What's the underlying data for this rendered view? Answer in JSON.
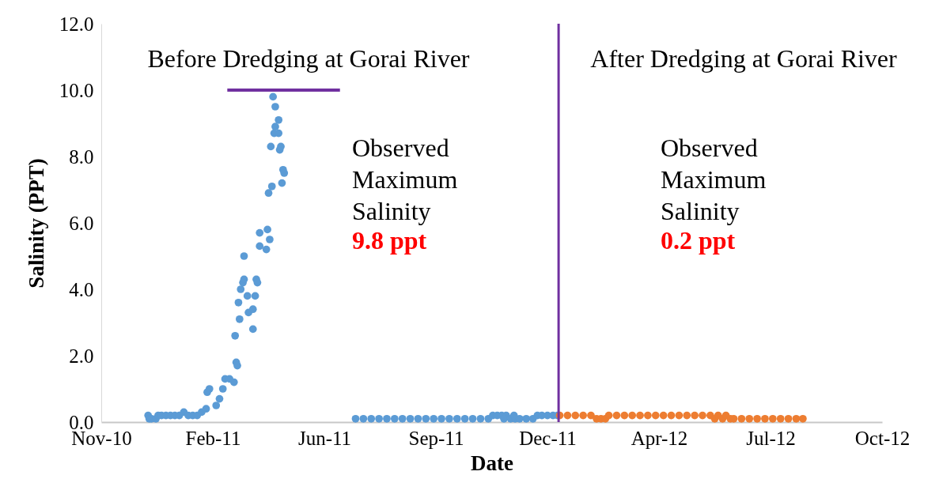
{
  "chart_data": {
    "type": "scatter",
    "xlabel": "Date",
    "ylabel": "Salinity (PPT)",
    "marker": "circle",
    "xlim": [
      "2010-11-19",
      "2012-10-19"
    ],
    "xticks": [
      {
        "value": "2010-11-19",
        "label": "Nov-10"
      },
      {
        "value": "2011-02-27",
        "label": "Feb-11"
      },
      {
        "value": "2011-06-07",
        "label": "Jun-11"
      },
      {
        "value": "2011-09-15",
        "label": "Sep-11"
      },
      {
        "value": "2011-12-24",
        "label": "Dec-11"
      },
      {
        "value": "2012-04-02",
        "label": "Apr-12"
      },
      {
        "value": "2012-07-11",
        "label": "Jul-12"
      },
      {
        "value": "2012-10-19",
        "label": "Oct-12"
      }
    ],
    "ylim": [
      0,
      12
    ],
    "yticks": [
      {
        "value": 0,
        "label": "0.0"
      },
      {
        "value": 2,
        "label": "2.0"
      },
      {
        "value": 4,
        "label": "4.0"
      },
      {
        "value": 6,
        "label": "6.0"
      },
      {
        "value": 8,
        "label": "8.0"
      },
      {
        "value": 10,
        "label": "10.0"
      },
      {
        "value": 12,
        "label": "12.0"
      }
    ],
    "series": [
      {
        "color": "#5b9bd5",
        "x": [
          "2010-12-31",
          "2011-01-01",
          "2011-01-03",
          "2011-01-07",
          "2011-01-09",
          "2011-01-12",
          "2011-01-16",
          "2011-01-20",
          "2011-01-24",
          "2011-01-28",
          "2011-02-01",
          "2011-02-05",
          "2011-02-09",
          "2011-02-13",
          "2011-02-17",
          "2011-02-21",
          "2011-02-22",
          "2011-02-24",
          "2011-03-02",
          "2011-03-05",
          "2011-03-08",
          "2011-03-10",
          "2011-03-14",
          "2011-03-18",
          "2011-03-19",
          "2011-03-20",
          "2011-03-21",
          "2011-03-22",
          "2011-03-23",
          "2011-03-24",
          "2011-03-26",
          "2011-03-27",
          "2011-03-27",
          "2011-03-30",
          "2011-03-31",
          "2011-04-04",
          "2011-04-04",
          "2011-04-06",
          "2011-04-07",
          "2011-04-08",
          "2011-04-10",
          "2011-04-10",
          "2011-04-16",
          "2011-04-17",
          "2011-04-18",
          "2011-04-19",
          "2011-04-20",
          "2011-04-21",
          "2011-04-22",
          "2011-04-23",
          "2011-04-24",
          "2011-04-24",
          "2011-04-27",
          "2011-04-27",
          "2011-04-28",
          "2011-04-29",
          "2011-04-30",
          "2011-05-01",
          "2011-05-02",
          "2011-07-05",
          "2011-07-12",
          "2011-07-19",
          "2011-07-26",
          "2011-08-02",
          "2011-08-09",
          "2011-08-16",
          "2011-08-23",
          "2011-08-30",
          "2011-09-06",
          "2011-09-13",
          "2011-09-20",
          "2011-09-27",
          "2011-10-04",
          "2011-10-11",
          "2011-10-18",
          "2011-10-25",
          "2011-11-01",
          "2011-11-05",
          "2011-11-09",
          "2011-11-13",
          "2011-11-17",
          "2011-11-15",
          "2011-11-21",
          "2011-11-25",
          "2011-11-24",
          "2011-11-29",
          "2011-12-05",
          "2011-12-11",
          "2011-12-15",
          "2011-12-19",
          "2011-12-24",
          "2011-12-29",
          "2012-01-02"
        ],
        "values": [
          0.2,
          0.1,
          0.1,
          0.1,
          0.2,
          0.2,
          0.2,
          0.2,
          0.2,
          0.2,
          0.3,
          0.2,
          0.2,
          0.2,
          0.3,
          0.4,
          0.9,
          1.0,
          0.5,
          0.7,
          1.0,
          1.3,
          1.3,
          1.2,
          2.6,
          1.8,
          1.7,
          3.6,
          3.1,
          4.0,
          4.2,
          4.3,
          5.0,
          3.8,
          3.3,
          3.4,
          2.8,
          3.8,
          4.3,
          4.2,
          5.7,
          5.3,
          5.2,
          5.8,
          6.9,
          5.5,
          8.3,
          7.1,
          9.8,
          8.7,
          9.5,
          8.9,
          9.1,
          8.7,
          8.2,
          8.3,
          7.2,
          7.6,
          7.5,
          0.1,
          0.1,
          0.1,
          0.1,
          0.1,
          0.1,
          0.1,
          0.1,
          0.1,
          0.1,
          0.1,
          0.1,
          0.1,
          0.1,
          0.1,
          0.1,
          0.1,
          0.1,
          0.2,
          0.2,
          0.2,
          0.2,
          0.1,
          0.1,
          0.1,
          0.2,
          0.1,
          0.1,
          0.1,
          0.2,
          0.2,
          0.2,
          0.2,
          0.2
        ]
      },
      {
        "color": "#ed7d31",
        "x": [
          "2012-01-04",
          "2012-01-11",
          "2012-01-18",
          "2012-01-25",
          "2012-02-01",
          "2012-02-06",
          "2012-02-10",
          "2012-02-14",
          "2012-02-17",
          "2012-02-24",
          "2012-03-02",
          "2012-03-09",
          "2012-03-16",
          "2012-03-23",
          "2012-03-30",
          "2012-04-06",
          "2012-04-13",
          "2012-04-20",
          "2012-04-27",
          "2012-05-04",
          "2012-05-11",
          "2012-05-18",
          "2012-05-22",
          "2012-05-25",
          "2012-05-29",
          "2012-06-01",
          "2012-06-05",
          "2012-06-08",
          "2012-06-15",
          "2012-06-22",
          "2012-06-29",
          "2012-07-06",
          "2012-07-13",
          "2012-07-20",
          "2012-07-27",
          "2012-08-03",
          "2012-08-09"
        ],
        "values": [
          0.2,
          0.2,
          0.2,
          0.2,
          0.2,
          0.1,
          0.1,
          0.1,
          0.2,
          0.2,
          0.2,
          0.2,
          0.2,
          0.2,
          0.2,
          0.2,
          0.2,
          0.2,
          0.2,
          0.2,
          0.2,
          0.2,
          0.1,
          0.2,
          0.1,
          0.2,
          0.1,
          0.1,
          0.1,
          0.1,
          0.1,
          0.1,
          0.1,
          0.1,
          0.1,
          0.1,
          0.1
        ]
      },
      {
        "type": "line",
        "marker": "none",
        "color": "#7030a0",
        "x": [
          "2011-03-12",
          "2011-06-21"
        ],
        "values": [
          10,
          10
        ]
      }
    ],
    "ref_lines": [
      {
        "axis": "x",
        "value": "2012-01-03",
        "color": "#7030a0"
      }
    ],
    "annotations": [
      "Before Dredging at Gorai River",
      "After Dredging at Gorai River",
      "Observed Maximum Salinity",
      "9.8 ppt",
      "Observed Maximum Salinity",
      "0.2 ppt"
    ]
  }
}
